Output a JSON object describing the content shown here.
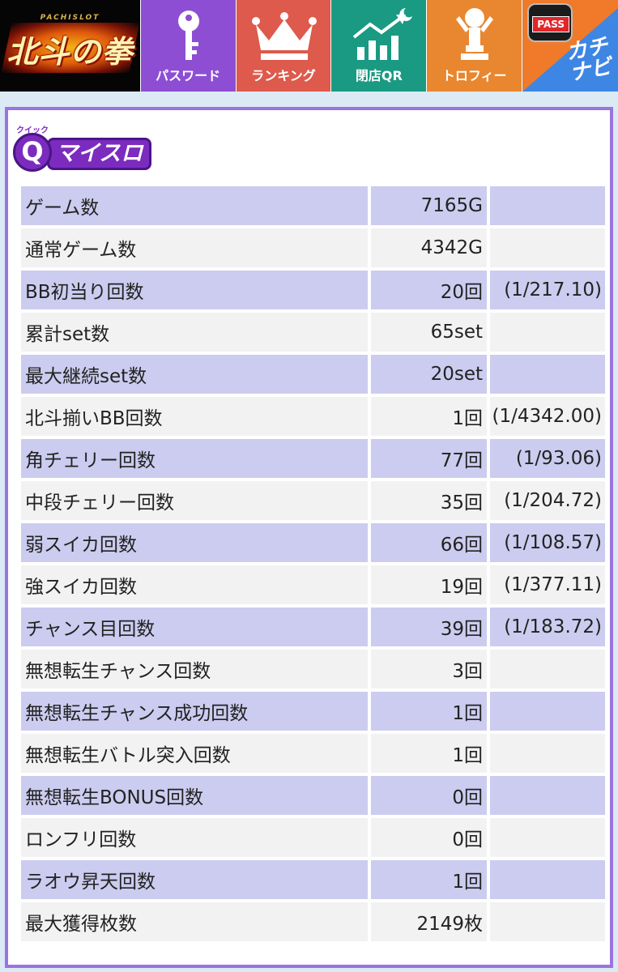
{
  "nav": {
    "logo_small": "PACHISLOT",
    "logo_big": "北斗の拳",
    "password": "パスワード",
    "ranking": "ランキング",
    "close_qr": "閉店QR",
    "trophy": "トロフィー",
    "kachinavi_badge": "PASS",
    "kachinavi": "カチナビ"
  },
  "colors": {
    "password": "#8d4ed4",
    "ranking": "#dd5a4c",
    "close_qr": "#1a9a82",
    "trophy": "#e8872f",
    "kachinavi": "#3e86e4",
    "panel_border": "#9a74e0",
    "row_odd": "#ccccf0",
    "row_even": "#f2f2f2"
  },
  "brand": {
    "sub": "クイック",
    "q": "Q",
    "name": "マイスロ"
  },
  "stats": [
    {
      "label": "ゲーム数",
      "value": "7165G",
      "ratio": ""
    },
    {
      "label": "通常ゲーム数",
      "value": "4342G",
      "ratio": ""
    },
    {
      "label": "BB初当り回数",
      "value": "20回",
      "ratio": "(1/217.10)"
    },
    {
      "label": "累計set数",
      "value": "65set",
      "ratio": ""
    },
    {
      "label": "最大継続set数",
      "value": "20set",
      "ratio": ""
    },
    {
      "label": "北斗揃いBB回数",
      "value": "1回",
      "ratio": "(1/4342.00)"
    },
    {
      "label": "角チェリー回数",
      "value": "77回",
      "ratio": "(1/93.06)"
    },
    {
      "label": "中段チェリー回数",
      "value": "35回",
      "ratio": "(1/204.72)"
    },
    {
      "label": "弱スイカ回数",
      "value": "66回",
      "ratio": "(1/108.57)"
    },
    {
      "label": "強スイカ回数",
      "value": "19回",
      "ratio": "(1/377.11)"
    },
    {
      "label": "チャンス目回数",
      "value": "39回",
      "ratio": "(1/183.72)"
    },
    {
      "label": "無想転生チャンス回数",
      "value": "3回",
      "ratio": ""
    },
    {
      "label": "無想転生チャンス成功回数",
      "value": "1回",
      "ratio": ""
    },
    {
      "label": "無想転生バトル突入回数",
      "value": "1回",
      "ratio": ""
    },
    {
      "label": "無想転生BONUS回数",
      "value": "0回",
      "ratio": ""
    },
    {
      "label": "ロンフリ回数",
      "value": "0回",
      "ratio": ""
    },
    {
      "label": "ラオウ昇天回数",
      "value": "1回",
      "ratio": ""
    },
    {
      "label": "最大獲得枚数",
      "value": "2149枚",
      "ratio": ""
    }
  ]
}
